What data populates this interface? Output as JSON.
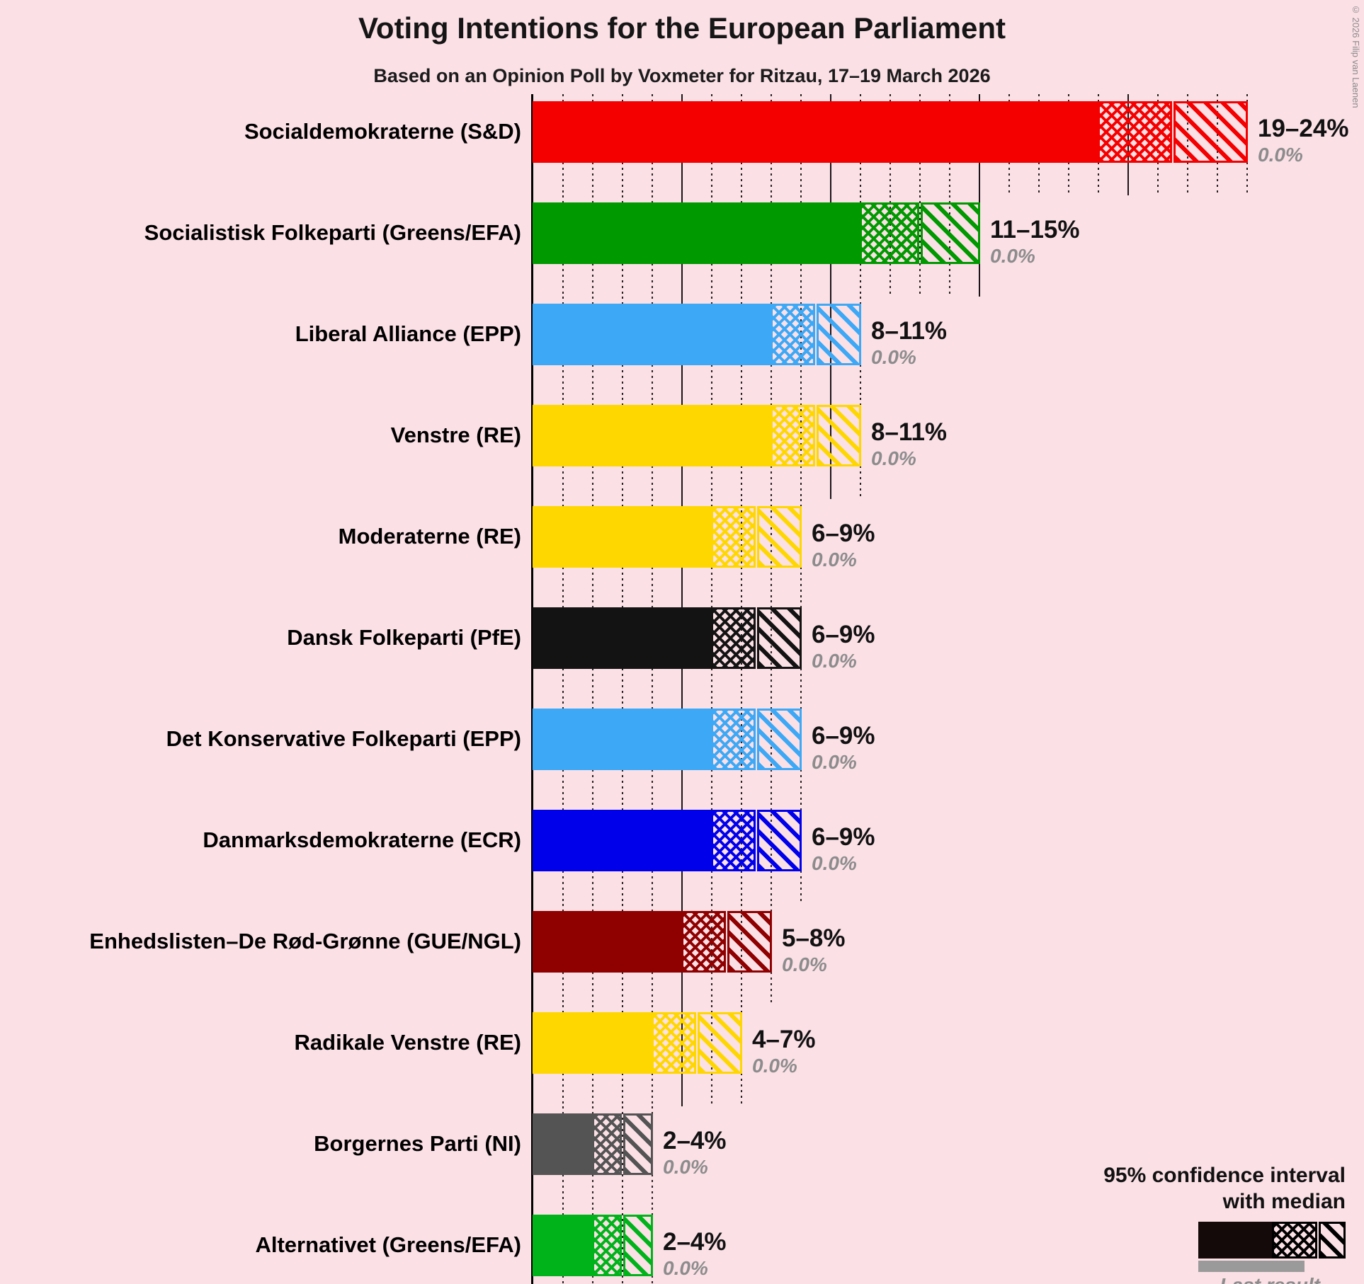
{
  "copyright": "© 2026 Filip van Laenen",
  "chart_data": {
    "type": "bar",
    "title": "Voting Intentions for the European Parliament",
    "subtitle": "Based on an Opinion Poll by Voxmeter for Ritzau, 17–19 March 2026",
    "orientation": "horizontal",
    "x_axis": {
      "min": 0,
      "max": 24,
      "unit": "%",
      "minor_gridline_step": 1,
      "major_gridline_step": 5,
      "gridlines": "clipped-per-row-at-ci-high"
    },
    "legend": {
      "ci_line1": "95% confidence interval",
      "ci_line2": "with median",
      "last_result": "Last result"
    },
    "parties": [
      {
        "label": "Socialdemokraterne (S&D)",
        "ci_low": 19,
        "median": 21.5,
        "ci_high": 24,
        "range_label": "19–24%",
        "last_result": 0.0,
        "last_result_label": "0.0%",
        "color": "#F50000"
      },
      {
        "label": "Socialistisk Folkeparti (Greens/EFA)",
        "ci_low": 11,
        "median": 13,
        "ci_high": 15,
        "range_label": "11–15%",
        "last_result": 0.0,
        "last_result_label": "0.0%",
        "color": "#009900"
      },
      {
        "label": "Liberal Alliance (EPP)",
        "ci_low": 8,
        "median": 9.5,
        "ci_high": 11,
        "range_label": "8–11%",
        "last_result": 0.0,
        "last_result_label": "0.0%",
        "color": "#3DA8F5"
      },
      {
        "label": "Venstre (RE)",
        "ci_low": 8,
        "median": 9.5,
        "ci_high": 11,
        "range_label": "8–11%",
        "last_result": 0.0,
        "last_result_label": "0.0%",
        "color": "#FFD700"
      },
      {
        "label": "Moderaterne (RE)",
        "ci_low": 6,
        "median": 7.5,
        "ci_high": 9,
        "range_label": "6–9%",
        "last_result": 0.0,
        "last_result_label": "0.0%",
        "color": "#FFD700"
      },
      {
        "label": "Dansk Folkeparti (PfE)",
        "ci_low": 6,
        "median": 7.5,
        "ci_high": 9,
        "range_label": "6–9%",
        "last_result": 0.0,
        "last_result_label": "0.0%",
        "color": "#131313"
      },
      {
        "label": "Det Konservative Folkeparti (EPP)",
        "ci_low": 6,
        "median": 7.5,
        "ci_high": 9,
        "range_label": "6–9%",
        "last_result": 0.0,
        "last_result_label": "0.0%",
        "color": "#3DA8F5"
      },
      {
        "label": "Danmarksdemokraterne (ECR)",
        "ci_low": 6,
        "median": 7.5,
        "ci_high": 9,
        "range_label": "6–9%",
        "last_result": 0.0,
        "last_result_label": "0.0%",
        "color": "#0000EB"
      },
      {
        "label": "Enhedslisten–De Rød-Grønne (GUE/NGL)",
        "ci_low": 5,
        "median": 6.5,
        "ci_high": 8,
        "range_label": "5–8%",
        "last_result": 0.0,
        "last_result_label": "0.0%",
        "color": "#8F0000"
      },
      {
        "label": "Radikale Venstre (RE)",
        "ci_low": 4,
        "median": 5.5,
        "ci_high": 7,
        "range_label": "4–7%",
        "last_result": 0.0,
        "last_result_label": "0.0%",
        "color": "#FFD700"
      },
      {
        "label": "Borgernes Parti (NI)",
        "ci_low": 2,
        "median": 3,
        "ci_high": 4,
        "range_label": "2–4%",
        "last_result": 0.0,
        "last_result_label": "0.0%",
        "color": "#545454"
      },
      {
        "label": "Alternativet (Greens/EFA)",
        "ci_low": 2,
        "median": 3,
        "ci_high": 4,
        "range_label": "2–4%",
        "last_result": 0.0,
        "last_result_label": "0.0%",
        "color": "#00B31A"
      }
    ]
  }
}
